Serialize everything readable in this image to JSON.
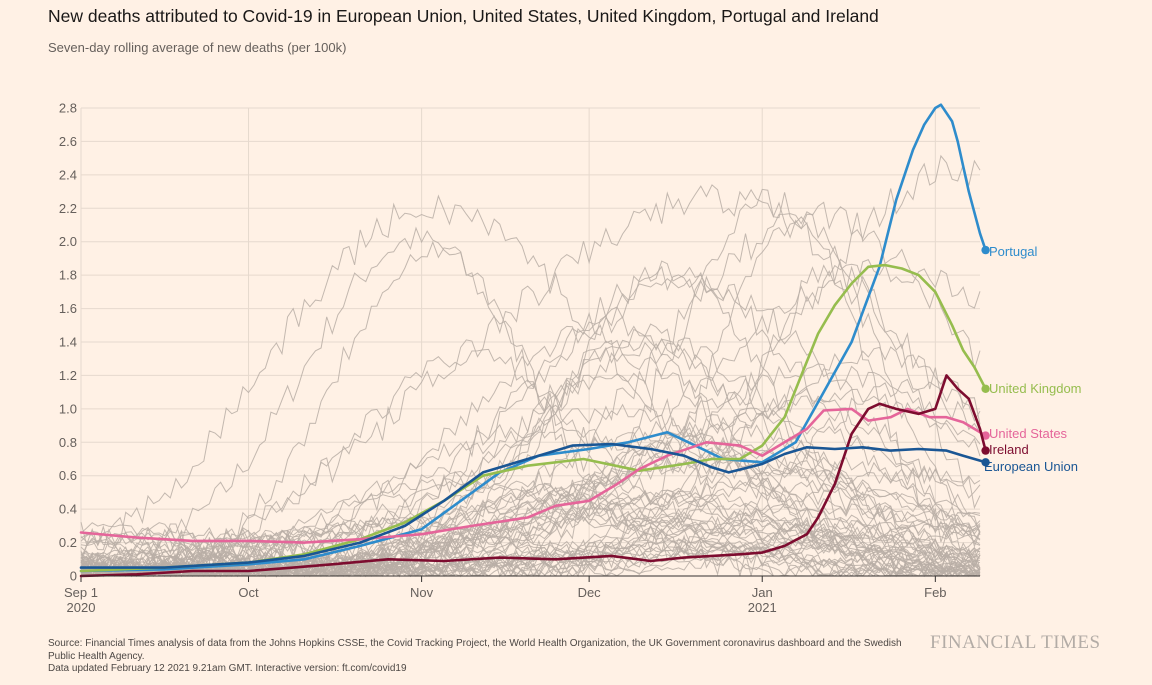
{
  "chart_data": {
    "type": "line",
    "title": "New deaths attributed to Covid-19 in European Union, United States, United Kingdom, Portugal and Ireland",
    "subtitle": "Seven-day rolling average of new deaths (per 100k)",
    "ylim": [
      0,
      2.8
    ],
    "yticks": [
      "0",
      "0.2",
      "0.4",
      "0.6",
      "0.8",
      "1.0",
      "1.2",
      "1.4",
      "1.6",
      "1.8",
      "2.0",
      "2.2",
      "2.4",
      "2.6",
      "2.8"
    ],
    "xrange_days": [
      0,
      161
    ],
    "xticks": [
      {
        "day": 0,
        "label": "Sep 1",
        "sub": "2020"
      },
      {
        "day": 30,
        "label": "Oct",
        "sub": ""
      },
      {
        "day": 61,
        "label": "Nov",
        "sub": ""
      },
      {
        "day": 91,
        "label": "Dec",
        "sub": ""
      },
      {
        "day": 122,
        "label": "Jan",
        "sub": "2021"
      },
      {
        "day": 153,
        "label": "Feb",
        "sub": ""
      }
    ],
    "background_series_count": 60,
    "series": [
      {
        "name": "Portugal",
        "color": "#2e8ccc",
        "points": [
          [
            0,
            0.03
          ],
          [
            15,
            0.04
          ],
          [
            30,
            0.07
          ],
          [
            40,
            0.1
          ],
          [
            50,
            0.18
          ],
          [
            61,
            0.28
          ],
          [
            68,
            0.45
          ],
          [
            75,
            0.62
          ],
          [
            82,
            0.72
          ],
          [
            91,
            0.76
          ],
          [
            98,
            0.8
          ],
          [
            105,
            0.86
          ],
          [
            110,
            0.78
          ],
          [
            115,
            0.7
          ],
          [
            122,
            0.68
          ],
          [
            128,
            0.8
          ],
          [
            133,
            1.1
          ],
          [
            138,
            1.4
          ],
          [
            143,
            1.85
          ],
          [
            146,
            2.25
          ],
          [
            149,
            2.55
          ],
          [
            151,
            2.7
          ],
          [
            153,
            2.8
          ],
          [
            154,
            2.82
          ],
          [
            156,
            2.72
          ],
          [
            157,
            2.6
          ],
          [
            159,
            2.3
          ],
          [
            161,
            2.05
          ],
          [
            162,
            1.95
          ]
        ]
      },
      {
        "name": "United Kingdom",
        "color": "#96bd4e",
        "points": [
          [
            0,
            0.03
          ],
          [
            15,
            0.05
          ],
          [
            30,
            0.08
          ],
          [
            40,
            0.13
          ],
          [
            50,
            0.22
          ],
          [
            58,
            0.32
          ],
          [
            65,
            0.45
          ],
          [
            72,
            0.6
          ],
          [
            80,
            0.66
          ],
          [
            90,
            0.7
          ],
          [
            100,
            0.63
          ],
          [
            108,
            0.67
          ],
          [
            113,
            0.7
          ],
          [
            118,
            0.7
          ],
          [
            122,
            0.78
          ],
          [
            126,
            0.95
          ],
          [
            129,
            1.2
          ],
          [
            132,
            1.45
          ],
          [
            135,
            1.62
          ],
          [
            138,
            1.75
          ],
          [
            141,
            1.85
          ],
          [
            144,
            1.86
          ],
          [
            147,
            1.84
          ],
          [
            150,
            1.8
          ],
          [
            153,
            1.7
          ],
          [
            156,
            1.5
          ],
          [
            158,
            1.35
          ],
          [
            160,
            1.25
          ],
          [
            162,
            1.12
          ]
        ]
      },
      {
        "name": "United States",
        "color": "#e5659a",
        "points": [
          [
            0,
            0.26
          ],
          [
            10,
            0.23
          ],
          [
            20,
            0.21
          ],
          [
            30,
            0.21
          ],
          [
            40,
            0.2
          ],
          [
            50,
            0.22
          ],
          [
            61,
            0.25
          ],
          [
            70,
            0.3
          ],
          [
            80,
            0.35
          ],
          [
            85,
            0.42
          ],
          [
            91,
            0.45
          ],
          [
            96,
            0.55
          ],
          [
            100,
            0.64
          ],
          [
            105,
            0.72
          ],
          [
            112,
            0.8
          ],
          [
            118,
            0.78
          ],
          [
            122,
            0.72
          ],
          [
            126,
            0.8
          ],
          [
            130,
            0.88
          ],
          [
            133,
            0.99
          ],
          [
            138,
            1.0
          ],
          [
            141,
            0.93
          ],
          [
            145,
            0.95
          ],
          [
            148,
            1.0
          ],
          [
            152,
            0.95
          ],
          [
            155,
            0.95
          ],
          [
            158,
            0.92
          ],
          [
            160,
            0.88
          ],
          [
            162,
            0.84
          ]
        ]
      },
      {
        "name": "Ireland",
        "color": "#7d0c2f",
        "points": [
          [
            0,
            0.0
          ],
          [
            10,
            0.01
          ],
          [
            20,
            0.03
          ],
          [
            30,
            0.03
          ],
          [
            38,
            0.05
          ],
          [
            45,
            0.07
          ],
          [
            55,
            0.1
          ],
          [
            65,
            0.09
          ],
          [
            75,
            0.11
          ],
          [
            85,
            0.1
          ],
          [
            95,
            0.12
          ],
          [
            102,
            0.09
          ],
          [
            108,
            0.11
          ],
          [
            113,
            0.12
          ],
          [
            118,
            0.13
          ],
          [
            122,
            0.14
          ],
          [
            126,
            0.18
          ],
          [
            130,
            0.25
          ],
          [
            132,
            0.35
          ],
          [
            135,
            0.55
          ],
          [
            138,
            0.85
          ],
          [
            141,
            1.0
          ],
          [
            143,
            1.03
          ],
          [
            146,
            1.0
          ],
          [
            150,
            0.97
          ],
          [
            153,
            1.0
          ],
          [
            155,
            1.2
          ],
          [
            157,
            1.12
          ],
          [
            159,
            1.06
          ],
          [
            161,
            0.88
          ],
          [
            162,
            0.75
          ]
        ]
      },
      {
        "name": "European Union",
        "color": "#1a5694",
        "points": [
          [
            0,
            0.05
          ],
          [
            15,
            0.05
          ],
          [
            30,
            0.08
          ],
          [
            40,
            0.12
          ],
          [
            50,
            0.2
          ],
          [
            58,
            0.3
          ],
          [
            65,
            0.45
          ],
          [
            72,
            0.62
          ],
          [
            80,
            0.7
          ],
          [
            88,
            0.78
          ],
          [
            95,
            0.79
          ],
          [
            102,
            0.76
          ],
          [
            108,
            0.72
          ],
          [
            113,
            0.65
          ],
          [
            116,
            0.62
          ],
          [
            122,
            0.67
          ],
          [
            126,
            0.73
          ],
          [
            130,
            0.77
          ],
          [
            135,
            0.76
          ],
          [
            140,
            0.77
          ],
          [
            145,
            0.75
          ],
          [
            150,
            0.76
          ],
          [
            155,
            0.75
          ],
          [
            158,
            0.72
          ],
          [
            162,
            0.68
          ]
        ]
      }
    ]
  },
  "labels": {
    "portugal": "Portugal",
    "united_kingdom": "United Kingdom",
    "united_states": "United States",
    "ireland": "Ireland",
    "european_union": "European Union"
  },
  "footer": {
    "source": "Source: Financial Times analysis of data from the Johns Hopkins CSSE, the Covid Tracking Project, the World Health Organization, the UK Government coronavirus dashboard and the Swedish Public Health Agency.",
    "updated": "Data updated February 12 2021 9.21am GMT. Interactive version: ft.com/covid19"
  },
  "logo": "FINANCIAL TIMES"
}
